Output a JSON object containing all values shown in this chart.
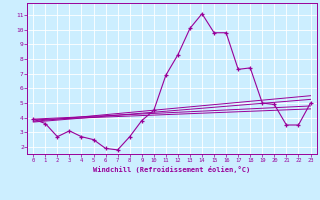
{
  "xlabel": "Windchill (Refroidissement éolien,°C)",
  "background_color": "#cceeff",
  "grid_color": "#ffffff",
  "line_color": "#990099",
  "xlim": [
    -0.5,
    23.5
  ],
  "ylim": [
    1.5,
    11.8
  ],
  "xticks": [
    0,
    1,
    2,
    3,
    4,
    5,
    6,
    7,
    8,
    9,
    10,
    11,
    12,
    13,
    14,
    15,
    16,
    17,
    18,
    19,
    20,
    21,
    22,
    23
  ],
  "yticks": [
    2,
    3,
    4,
    5,
    6,
    7,
    8,
    9,
    10,
    11
  ],
  "main_line": [
    [
      0,
      3.9
    ],
    [
      1,
      3.6
    ],
    [
      2,
      2.7
    ],
    [
      3,
      3.1
    ],
    [
      4,
      2.7
    ],
    [
      5,
      2.5
    ],
    [
      6,
      1.9
    ],
    [
      7,
      1.8
    ],
    [
      8,
      2.7
    ],
    [
      9,
      3.8
    ],
    [
      10,
      4.5
    ],
    [
      11,
      6.9
    ],
    [
      12,
      8.3
    ],
    [
      13,
      10.1
    ],
    [
      14,
      11.1
    ],
    [
      15,
      9.8
    ],
    [
      16,
      9.8
    ],
    [
      17,
      7.3
    ],
    [
      18,
      7.4
    ],
    [
      19,
      5.0
    ],
    [
      20,
      4.9
    ],
    [
      21,
      3.5
    ],
    [
      22,
      3.5
    ],
    [
      23,
      5.0
    ]
  ],
  "straight_lines": [
    [
      [
        0,
        3.9
      ],
      [
        23,
        4.8
      ]
    ],
    [
      [
        0,
        3.85
      ],
      [
        23,
        4.6
      ]
    ],
    [
      [
        0,
        3.75
      ],
      [
        23,
        5.5
      ]
    ],
    [
      [
        0,
        3.7
      ],
      [
        23,
        5.25
      ]
    ]
  ]
}
